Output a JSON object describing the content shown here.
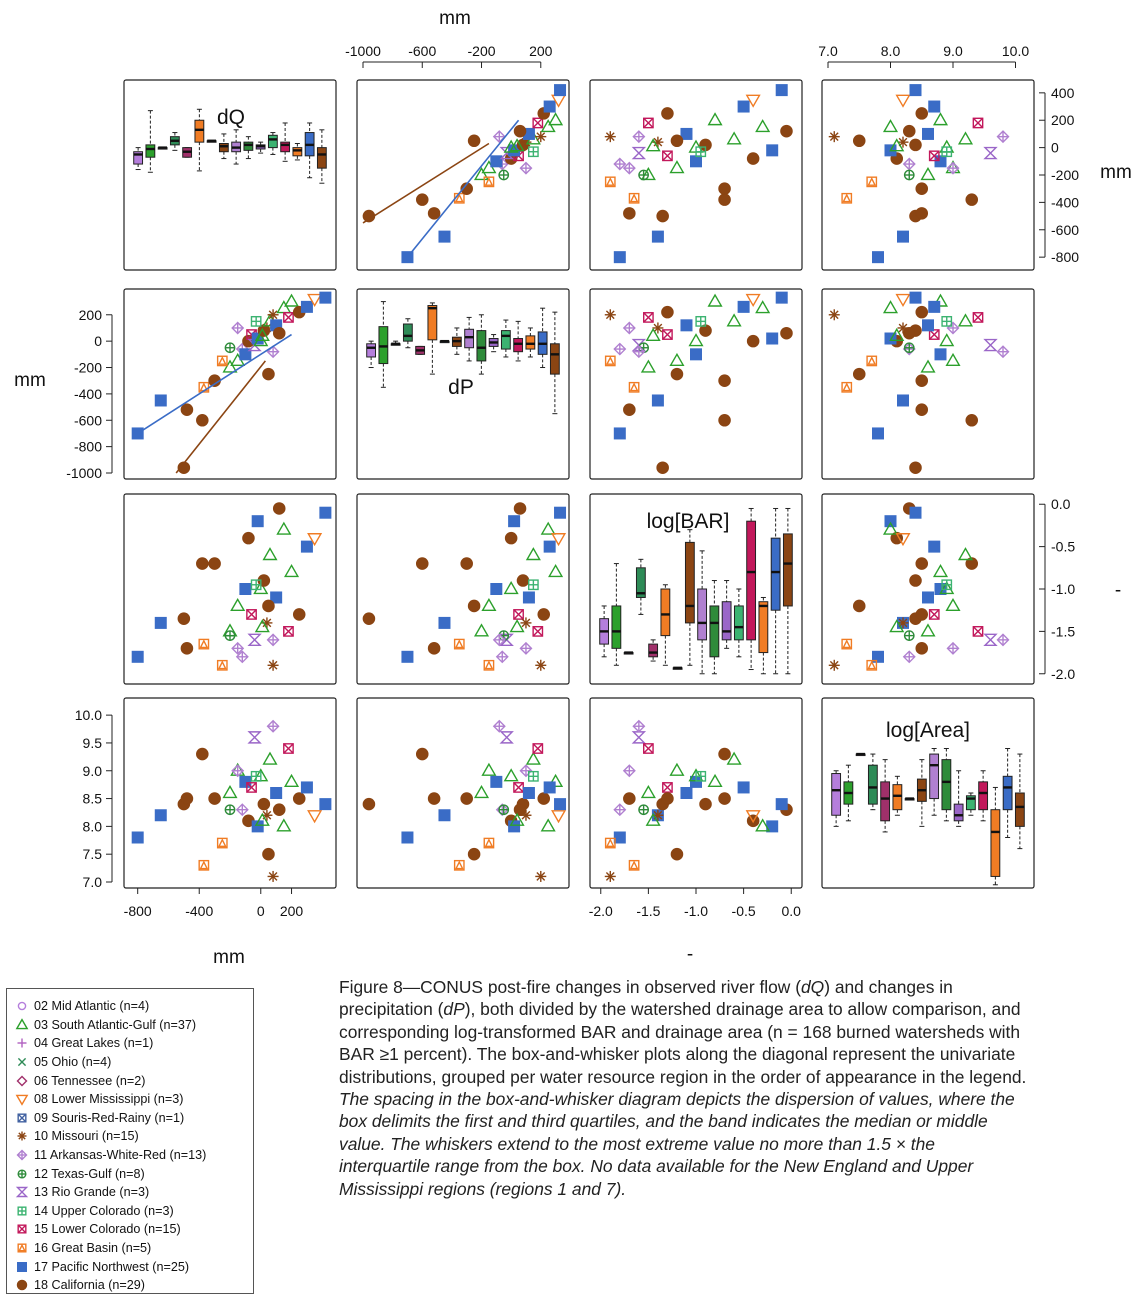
{
  "figure": {
    "caption_lead": "Figure 8—CONUS post-fire changes in observed river flow (",
    "caption_dq": "dQ",
    "caption_mid1": ") and changes in precipitation (",
    "caption_dp": "dP",
    "caption_mid2": "), both divided by the watershed drainage area to allow comparison, and corresponding log-transformed BAR and drainage area (n = 168 burned watersheds with BAR ≥1 percent). The box-and-whisker plots along the diagonal represent the univariate distributions, grouped per water resource region in the order of appearance in the legend.",
    "caption_italic": "The spacing in the box-and-whisker diagram depicts the dispersion of values, where the box delimits the first and third quartiles, and the band indicates the median or middle value. The whiskers extend to the most extreme value no more than 1.5 × the interquartile range from the box. No data available for the New England and Upper Mississippi regions (regions 1 and 7)."
  },
  "colors": {
    "r02": "#b57edc",
    "r03": "#2ca02c",
    "r04": "#b060c0",
    "r05": "#2e8b57",
    "r06": "#a0306a",
    "r08": "#f07c24",
    "r09": "#4060a0",
    "r10": "#8b4513",
    "r11": "#b080d0",
    "r12": "#2e8b3a",
    "r13": "#9a66c8",
    "r14": "#3cb371",
    "r15": "#c2185b",
    "r16": "#f07c24",
    "r17": "#3a6cc6",
    "r18": "#8b4513"
  },
  "legend": [
    {
      "label": "02 Mid Atlantic (n=4)",
      "symbol": "circle",
      "color": "#b57edc"
    },
    {
      "label": "03 South Atlantic-Gulf (n=37)",
      "symbol": "triangle",
      "color": "#2ca02c"
    },
    {
      "label": "04 Great Lakes (n=1)",
      "symbol": "plus",
      "color": "#b060c0"
    },
    {
      "label": "05 Ohio (n=4)",
      "symbol": "cross",
      "color": "#2e8b57"
    },
    {
      "label": "06 Tennessee (n=2)",
      "symbol": "diamond",
      "color": "#a0306a"
    },
    {
      "label": "08 Lower Mississippi (n=3)",
      "symbol": "triangle-down",
      "color": "#f07c24"
    },
    {
      "label": "09 Souris-Red-Rainy (n=1)",
      "symbol": "square-x",
      "color": "#4060a0"
    },
    {
      "label": "10 Missouri (n=15)",
      "symbol": "asterisk",
      "color": "#8b4513"
    },
    {
      "label": "11 Arkansas-White-Red (n=13)",
      "symbol": "diamond-plus",
      "color": "#b080d0"
    },
    {
      "label": "12 Texas-Gulf (n=8)",
      "symbol": "circle-plus",
      "color": "#2e8b3a"
    },
    {
      "label": "13 Rio Grande (n=3)",
      "symbol": "hourglass",
      "color": "#9a66c8"
    },
    {
      "label": "14 Upper Colorado (n=3)",
      "symbol": "square-plus",
      "color": "#3cb371"
    },
    {
      "label": "15 Lower Colorado (n=15)",
      "symbol": "square-x",
      "color": "#c2185b"
    },
    {
      "label": "16 Great Basin (n=5)",
      "symbol": "square-tri",
      "color": "#f07c24"
    },
    {
      "label": "17 Pacific Northwest (n=25)",
      "symbol": "square-filled",
      "color": "#3a6cc6"
    },
    {
      "label": "18 California (n=29)",
      "symbol": "circle-filled",
      "color": "#8b4513"
    }
  ],
  "chart_data": {
    "type": "scatter",
    "variables": [
      "dQ",
      "dP",
      "log[BAR]",
      "log[Area]"
    ],
    "diagonal_labels": [
      "dQ",
      "dP",
      "log[BAR]",
      "log[Area]"
    ],
    "outer_axis_labels": {
      "top": "mm",
      "right_top": "mm",
      "left_second": "mm",
      "bottom": "mm",
      "right_third": "-",
      "bottom_third": "-"
    },
    "ranges": {
      "dQ": [
        -850,
        450
      ],
      "dP": [
        -1000,
        350
      ],
      "log[BAR]": [
        -2.05,
        0.05
      ],
      "log[Area]": [
        7.0,
        10.2
      ]
    },
    "ticks": {
      "dQ_right": [
        400,
        200,
        0,
        -200,
        -400,
        -600,
        -800
      ],
      "dP_top": [
        -1000,
        -600,
        -200,
        200
      ],
      "dP_left": [
        200,
        0,
        -200,
        -400,
        -600,
        -800,
        -1000
      ],
      "bar_right": [
        0.0,
        -0.5,
        -1.0,
        -1.5,
        -2.0
      ],
      "bar_bottom": [
        -2.0,
        -1.5,
        -1.0,
        -0.5,
        0.0
      ],
      "area_top": [
        7.0,
        8.0,
        9.0,
        10.0
      ],
      "area_left": [
        10.0,
        9.5,
        9.0,
        8.5,
        8.0,
        7.5,
        7.0
      ],
      "dq_bottom": [
        -800,
        -400,
        0,
        200
      ]
    },
    "tick_labels": {
      "dQ_right": [
        "400",
        "200",
        "0",
        "-200",
        "-400",
        "-600",
        "-800"
      ],
      "dP_top": [
        "-1000",
        "-600",
        "-200",
        "200"
      ],
      "dP_left": [
        "200",
        "0",
        "-200",
        "-400",
        "-600",
        "-800",
        "-1000"
      ],
      "bar_right": [
        "0.0",
        "-0.5",
        "-1.0",
        "-1.5",
        "-2.0"
      ],
      "bar_bottom": [
        "-2.0",
        "-1.5",
        "-1.0",
        "-0.5",
        "0.0"
      ],
      "area_top": [
        "7.0",
        "8.0",
        "9.0",
        "10.0"
      ],
      "area_left": [
        "10.0",
        "9.5",
        "9.0",
        "8.5",
        "8.0",
        "7.5",
        "7.0"
      ],
      "dq_bottom": [
        "-800",
        "-400",
        "0",
        "200"
      ]
    },
    "observations_approx": [
      {
        "dQ": -800,
        "dP": -700,
        "bar": -1.8,
        "area": 7.8,
        "region": 17
      },
      {
        "dQ": -650,
        "dP": -450,
        "bar": -1.4,
        "area": 8.2,
        "region": 17
      },
      {
        "dQ": -500,
        "dP": -960,
        "bar": -1.35,
        "area": 8.4,
        "region": 18
      },
      {
        "dQ": -480,
        "dP": -520,
        "bar": -1.7,
        "area": 8.5,
        "region": 18
      },
      {
        "dQ": -380,
        "dP": -600,
        "bar": -0.7,
        "area": 9.3,
        "region": 18
      },
      {
        "dQ": -370,
        "dP": -350,
        "bar": -1.65,
        "area": 7.3,
        "region": 16
      },
      {
        "dQ": -300,
        "dP": -300,
        "bar": -0.7,
        "area": 8.5,
        "region": 18
      },
      {
        "dQ": -200,
        "dP": -200,
        "bar": -1.5,
        "area": 8.6,
        "region": 3
      },
      {
        "dQ": -150,
        "dP": -150,
        "bar": -1.2,
        "area": 9.0,
        "region": 3
      },
      {
        "dQ": -120,
        "dP": -60,
        "bar": -1.8,
        "area": 8.3,
        "region": 11
      },
      {
        "dQ": -100,
        "dP": -100,
        "bar": -1.0,
        "area": 8.8,
        "region": 17
      },
      {
        "dQ": -80,
        "dP": 0,
        "bar": -0.4,
        "area": 8.1,
        "region": 18
      },
      {
        "dQ": -60,
        "dP": 50,
        "bar": -1.3,
        "area": 8.7,
        "region": 15
      },
      {
        "dQ": -40,
        "dP": -30,
        "bar": -1.6,
        "area": 9.6,
        "region": 13
      },
      {
        "dQ": -20,
        "dP": 20,
        "bar": -0.2,
        "area": 8.0,
        "region": 17
      },
      {
        "dQ": 0,
        "dP": 0,
        "bar": -1.0,
        "area": 8.9,
        "region": 3
      },
      {
        "dQ": 20,
        "dP": 80,
        "bar": -0.9,
        "area": 8.4,
        "region": 18
      },
      {
        "dQ": 40,
        "dP": 100,
        "bar": -1.4,
        "area": 8.2,
        "region": 10
      },
      {
        "dQ": 60,
        "dP": 150,
        "bar": -0.6,
        "area": 9.2,
        "region": 3
      },
      {
        "dQ": 80,
        "dP": 200,
        "bar": -1.9,
        "area": 7.1,
        "region": 10
      },
      {
        "dQ": 100,
        "dP": 120,
        "bar": -1.1,
        "area": 8.6,
        "region": 17
      },
      {
        "dQ": 120,
        "dP": 60,
        "bar": -0.05,
        "area": 8.3,
        "region": 18
      },
      {
        "dQ": 150,
        "dP": 250,
        "bar": -0.3,
        "area": 8.0,
        "region": 3
      },
      {
        "dQ": 180,
        "dP": 180,
        "bar": -1.5,
        "area": 9.4,
        "region": 15
      },
      {
        "dQ": 200,
        "dP": 300,
        "bar": -0.8,
        "area": 8.8,
        "region": 3
      },
      {
        "dQ": 250,
        "dP": 220,
        "bar": -1.3,
        "area": 8.5,
        "region": 18
      },
      {
        "dQ": 300,
        "dP": 260,
        "bar": -0.5,
        "area": 8.7,
        "region": 17
      },
      {
        "dQ": 350,
        "dP": 320,
        "bar": -0.4,
        "area": 8.2,
        "region": 8
      },
      {
        "dQ": 420,
        "dP": 330,
        "bar": -0.1,
        "area": 8.4,
        "region": 17
      },
      {
        "dQ": -250,
        "dP": -150,
        "bar": -1.9,
        "area": 7.7,
        "region": 16
      },
      {
        "dQ": -200,
        "dP": -50,
        "bar": -1.55,
        "area": 8.3,
        "region": 12
      },
      {
        "dQ": -150,
        "dP": 100,
        "bar": -1.7,
        "area": 9.0,
        "region": 11
      },
      {
        "dQ": 50,
        "dP": -250,
        "bar": -1.2,
        "area": 7.5,
        "region": 18
      },
      {
        "dQ": -30,
        "dP": 150,
        "bar": -0.95,
        "area": 8.9,
        "region": 14
      },
      {
        "dQ": 80,
        "dP": -80,
        "bar": -1.6,
        "area": 9.8,
        "region": 11
      },
      {
        "dQ": 10,
        "dP": 40,
        "bar": -1.45,
        "area": 8.1,
        "region": 3
      }
    ],
    "diagonal_boxplots": {
      "groups": [
        "02",
        "03",
        "04",
        "05",
        "06",
        "08",
        "09",
        "10",
        "11",
        "12",
        "13",
        "14",
        "15",
        "16",
        "17",
        "18"
      ],
      "dQ": [
        {
          "q1": -120,
          "med": -50,
          "q3": -30,
          "lo": -160,
          "hi": 0
        },
        {
          "q1": -70,
          "med": -10,
          "q3": 20,
          "lo": -180,
          "hi": 270
        },
        {
          "q1": 0,
          "med": 0,
          "q3": 0,
          "lo": 0,
          "hi": 0
        },
        {
          "q1": 20,
          "med": 50,
          "q3": 80,
          "lo": -20,
          "hi": 110
        },
        {
          "q1": -70,
          "med": -30,
          "q3": 0,
          "lo": -70,
          "hi": 0
        },
        {
          "q1": 40,
          "med": 130,
          "q3": 200,
          "lo": -170,
          "hi": 280
        },
        {
          "q1": 50,
          "med": 50,
          "q3": 50,
          "lo": 50,
          "hi": 50
        },
        {
          "q1": -30,
          "med": 10,
          "q3": 30,
          "lo": -80,
          "hi": 100
        },
        {
          "q1": -30,
          "med": 0,
          "q3": 40,
          "lo": -120,
          "hi": 130
        },
        {
          "q1": -20,
          "med": 20,
          "q3": 40,
          "lo": -80,
          "hi": 80
        },
        {
          "q1": -10,
          "med": 10,
          "q3": 20,
          "lo": -40,
          "hi": 40
        },
        {
          "q1": 0,
          "med": 60,
          "q3": 90,
          "lo": -50,
          "hi": 110
        },
        {
          "q1": -30,
          "med": 20,
          "q3": 40,
          "lo": -100,
          "hi": 180
        },
        {
          "q1": -60,
          "med": -20,
          "q3": 0,
          "lo": -90,
          "hi": 30
        },
        {
          "q1": -60,
          "med": 20,
          "q3": 110,
          "lo": -220,
          "hi": 180
        },
        {
          "q1": -150,
          "med": -50,
          "q3": 0,
          "lo": -260,
          "hi": 130
        }
      ],
      "dP": [
        {
          "q1": -120,
          "med": -50,
          "q3": -20,
          "lo": -200,
          "hi": 0
        },
        {
          "q1": -170,
          "med": -40,
          "q3": 110,
          "lo": -350,
          "hi": 300
        },
        {
          "q1": -20,
          "med": -20,
          "q3": -20,
          "lo": -20,
          "hi": 0
        },
        {
          "q1": 0,
          "med": 40,
          "q3": 130,
          "lo": -50,
          "hi": 170
        },
        {
          "q1": -100,
          "med": -70,
          "q3": -40,
          "lo": -100,
          "hi": -40
        },
        {
          "q1": 10,
          "med": 250,
          "q3": 270,
          "lo": -250,
          "hi": 290
        },
        {
          "q1": 0,
          "med": 0,
          "q3": 0,
          "lo": 0,
          "hi": 0
        },
        {
          "q1": -40,
          "med": 0,
          "q3": 30,
          "lo": -100,
          "hi": 100
        },
        {
          "q1": -50,
          "med": 30,
          "q3": 90,
          "lo": -150,
          "hi": 180
        },
        {
          "q1": -150,
          "med": -50,
          "q3": 80,
          "lo": -250,
          "hi": 200
        },
        {
          "q1": -40,
          "med": -10,
          "q3": 20,
          "lo": -80,
          "hi": 50
        },
        {
          "q1": -60,
          "med": 40,
          "q3": 80,
          "lo": -120,
          "hi": 160
        },
        {
          "q1": -80,
          "med": -20,
          "q3": 20,
          "lo": -150,
          "hi": 150
        },
        {
          "q1": -60,
          "med": -20,
          "q3": 40,
          "lo": -120,
          "hi": 100
        },
        {
          "q1": -100,
          "med": -20,
          "q3": 70,
          "lo": -200,
          "hi": 250
        },
        {
          "q1": -250,
          "med": -100,
          "q3": -20,
          "lo": -550,
          "hi": 220
        }
      ],
      "bar": [
        {
          "q1": -1.65,
          "med": -1.5,
          "q3": -1.35,
          "lo": -1.8,
          "hi": -1.2
        },
        {
          "q1": -1.7,
          "med": -1.5,
          "q3": -1.2,
          "lo": -1.9,
          "hi": -0.7
        },
        {
          "q1": -1.75,
          "med": -1.75,
          "q3": -1.75,
          "lo": -1.75,
          "hi": -1.75
        },
        {
          "q1": -1.1,
          "med": -1.05,
          "q3": -0.75,
          "lo": -1.3,
          "hi": -0.65
        },
        {
          "q1": -1.8,
          "med": -1.75,
          "q3": -1.65,
          "lo": -1.85,
          "hi": -1.6
        },
        {
          "q1": -1.55,
          "med": -1.3,
          "q3": -1.0,
          "lo": -1.9,
          "hi": -0.95
        },
        {
          "q1": -1.93,
          "med": -1.93,
          "q3": -1.93,
          "lo": -1.93,
          "hi": -1.93
        },
        {
          "q1": -1.4,
          "med": -1.2,
          "q3": -0.45,
          "lo": -1.9,
          "hi": -0.3
        },
        {
          "q1": -1.6,
          "med": -1.4,
          "q3": -1.0,
          "lo": -2.0,
          "hi": -0.55
        },
        {
          "q1": -1.8,
          "med": -1.4,
          "q3": -1.2,
          "lo": -2.0,
          "hi": -0.9
        },
        {
          "q1": -1.6,
          "med": -1.5,
          "q3": -1.15,
          "lo": -1.7,
          "hi": -0.9
        },
        {
          "q1": -1.6,
          "med": -1.45,
          "q3": -1.2,
          "lo": -1.8,
          "hi": -1.0
        },
        {
          "q1": -1.6,
          "med": -0.8,
          "q3": -0.2,
          "lo": -1.95,
          "hi": -0.05
        },
        {
          "q1": -1.75,
          "med": -1.2,
          "q3": -1.15,
          "lo": -2.0,
          "hi": -1.1
        },
        {
          "q1": -1.25,
          "med": -0.8,
          "q3": -0.4,
          "lo": -2.0,
          "hi": -0.05
        },
        {
          "q1": -1.2,
          "med": -0.7,
          "q3": -0.35,
          "lo": -2.0,
          "hi": -0.05
        }
      ],
      "area": [
        {
          "q1": 8.2,
          "med": 8.65,
          "q3": 8.95,
          "lo": 8.0,
          "hi": 9.0
        },
        {
          "q1": 8.4,
          "med": 8.6,
          "q3": 8.8,
          "lo": 8.1,
          "hi": 9.1
        },
        {
          "q1": 9.3,
          "med": 9.3,
          "q3": 9.3,
          "lo": 9.3,
          "hi": 9.3
        },
        {
          "q1": 8.4,
          "med": 8.7,
          "q3": 9.1,
          "lo": 8.3,
          "hi": 9.3
        },
        {
          "q1": 8.1,
          "med": 8.5,
          "q3": 8.8,
          "lo": 7.9,
          "hi": 9.2
        },
        {
          "q1": 8.3,
          "med": 8.55,
          "q3": 8.75,
          "lo": 8.2,
          "hi": 8.9
        },
        {
          "q1": 8.5,
          "med": 8.5,
          "q3": 8.5,
          "lo": 8.5,
          "hi": 8.5
        },
        {
          "q1": 8.45,
          "med": 8.65,
          "q3": 8.85,
          "lo": 8.0,
          "hi": 9.2
        },
        {
          "q1": 8.5,
          "med": 9.1,
          "q3": 9.3,
          "lo": 8.2,
          "hi": 9.4
        },
        {
          "q1": 8.3,
          "med": 8.8,
          "q3": 9.2,
          "lo": 8.1,
          "hi": 9.4
        },
        {
          "q1": 8.1,
          "med": 8.2,
          "q3": 8.4,
          "lo": 8.0,
          "hi": 9.0
        },
        {
          "q1": 8.3,
          "med": 8.5,
          "q3": 8.55,
          "lo": 8.2,
          "hi": 8.6
        },
        {
          "q1": 8.3,
          "med": 8.6,
          "q3": 8.8,
          "lo": 8.1,
          "hi": 9.0
        },
        {
          "q1": 7.1,
          "med": 7.9,
          "q3": 8.3,
          "lo": 6.95,
          "hi": 8.7
        },
        {
          "q1": 8.3,
          "med": 8.7,
          "q3": 8.9,
          "lo": 7.8,
          "hi": 9.4
        },
        {
          "q1": 8.0,
          "med": 8.35,
          "q3": 8.6,
          "lo": 7.6,
          "hi": 9.3
        }
      ]
    },
    "trend_lines": {
      "dQ_vs_dP": [
        {
          "region": 18,
          "from": [
            -1000,
            -550
          ],
          "to": [
            -150,
            30
          ]
        },
        {
          "region": 17,
          "from": [
            -700,
            -800
          ],
          "to": [
            50,
            200
          ]
        }
      ]
    }
  }
}
